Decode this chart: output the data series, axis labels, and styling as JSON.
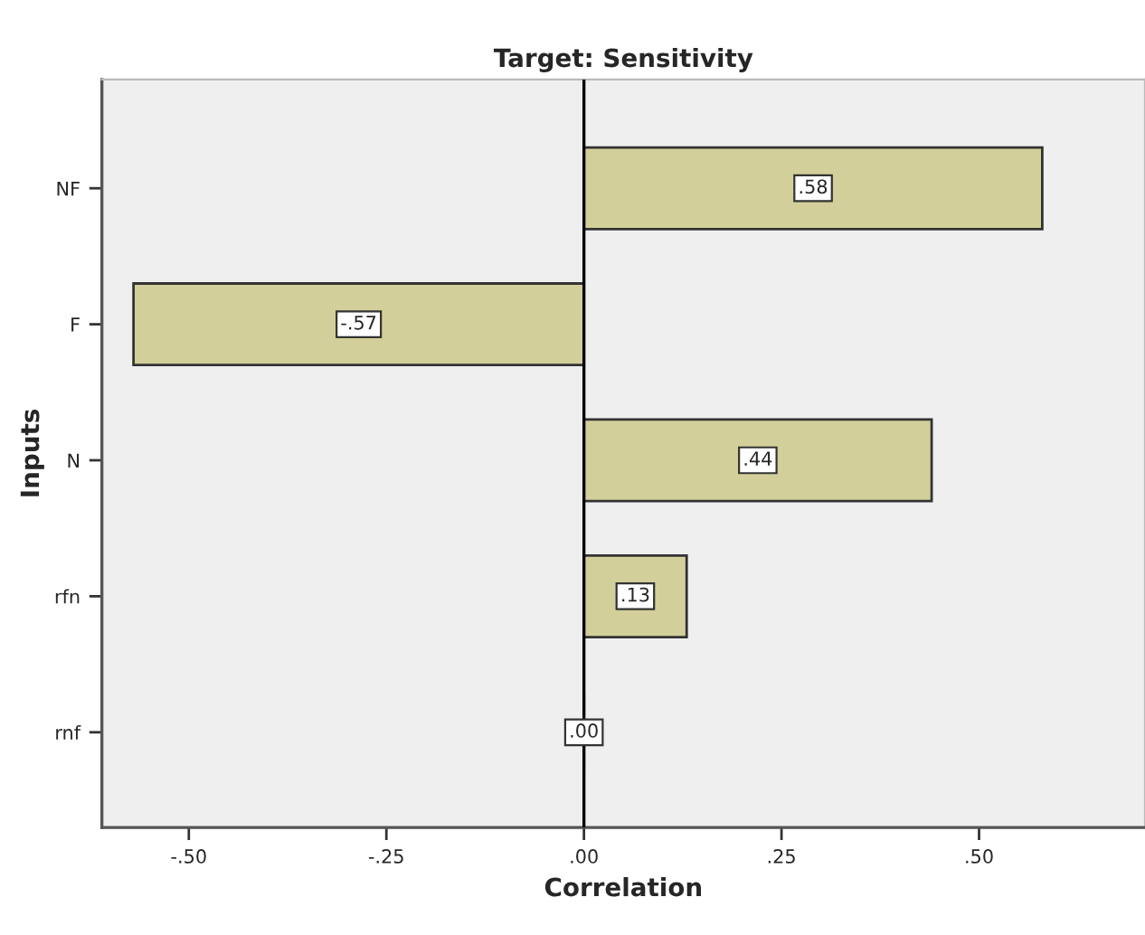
{
  "chart_data": {
    "type": "bar",
    "orientation": "horizontal",
    "title": "Target: Sensitivity",
    "xlabel": "Correlation",
    "ylabel": "Inputs",
    "categories": [
      "NF",
      "F",
      "N",
      "rfn",
      "rnf"
    ],
    "values": [
      0.58,
      -0.57,
      0.44,
      0.13,
      0.0
    ],
    "value_labels": [
      ".58",
      "-.57",
      ".44",
      ".13",
      ".00"
    ],
    "colors": [
      "#d3cf9a",
      "#d3cf9a",
      "#d3cf9a",
      "#d3cf9a",
      "#000000"
    ],
    "xlim": [
      -0.61,
      0.71
    ],
    "xticks": [
      {
        "value": -0.5,
        "label": "-.50"
      },
      {
        "value": -0.25,
        "label": "-.25"
      },
      {
        "value": 0,
        "label": ".00"
      },
      {
        "value": 0.25,
        "label": ".25"
      },
      {
        "value": 0.5,
        "label": ".50"
      }
    ],
    "ref_lines": [
      {
        "axis": "x",
        "value": 0,
        "color": "#000000"
      }
    ],
    "grid": false
  }
}
